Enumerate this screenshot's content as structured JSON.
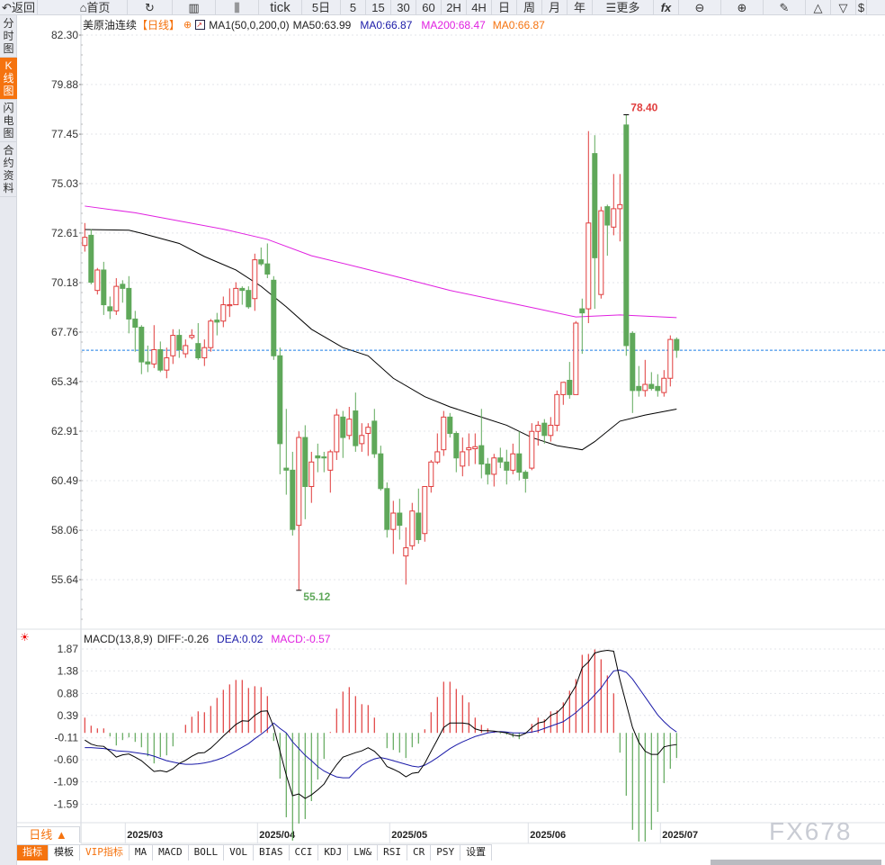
{
  "toolbar": {
    "back": "返回",
    "home": "首页",
    "tick": "tick",
    "periods": [
      "5日",
      "5",
      "15",
      "30",
      "60",
      "2H",
      "4H",
      "日",
      "周",
      "月",
      "年"
    ],
    "more": "更多",
    "fx": "fx"
  },
  "left_tabs": [
    "分时图",
    "K线图",
    "闪电图",
    "合约资料"
  ],
  "active_left_tab": "K线图",
  "legend": {
    "symbol": "美原油连续",
    "period": "【日线】",
    "indicator": "MA1(50,0,200,0)",
    "ma50": "MA50:63.99",
    "ma0a": "MA0:66.87",
    "ma200": "MA200:68.47",
    "ma0b": "MA0:66.87"
  },
  "macd_legend": {
    "name": "MACD(13,8,9)",
    "diff": "DIFF:-0.26",
    "dea": "DEA:0.02",
    "macd": "MACD:-0.57"
  },
  "period_selector": "日线 ▲",
  "bottom_tabs": [
    "指标",
    "模板",
    "VIP指标",
    "MA",
    "MACD",
    "BOLL",
    "VOL",
    "BIAS",
    "CCI",
    "KDJ",
    "LW&",
    "RSI",
    "CR",
    "PSY",
    "设置"
  ],
  "watermark": "FX678",
  "colors": {
    "up": "#e03c3c",
    "down": "#5fa85a",
    "ma50": "#000000",
    "ma200": "#e020e0",
    "last_price_line": "#1e7fe8",
    "dea": "#1a1aa8",
    "accent": "#f5730f"
  },
  "chart_data": [
    {
      "type": "candlestick",
      "title": "美原油连续",
      "ylim": [
        55.64,
        82.3
      ],
      "y_ticks": [
        "82.30",
        "79.88",
        "77.45",
        "75.03",
        "72.61",
        "70.18",
        "67.76",
        "65.34",
        "62.91",
        "60.49",
        "58.06",
        "55.64"
      ],
      "x_ticks": [
        {
          "label": "2025/03",
          "index": 7
        },
        {
          "label": "2025/04",
          "index": 28
        },
        {
          "label": "2025/05",
          "index": 49
        },
        {
          "label": "2025/06",
          "index": 71
        },
        {
          "label": "2025/07",
          "index": 92
        }
      ],
      "annotations": {
        "high": "78.40",
        "low": "55.12",
        "last": 66.87
      },
      "ohlc": [
        [
          72.0,
          73.1,
          71.7,
          72.4
        ],
        [
          72.5,
          72.8,
          70.1,
          70.2
        ],
        [
          69.8,
          70.9,
          69.6,
          70.8
        ],
        [
          70.8,
          71.2,
          68.6,
          69.1
        ],
        [
          69.0,
          69.5,
          68.4,
          68.8
        ],
        [
          68.8,
          70.4,
          68.6,
          70.0
        ],
        [
          70.1,
          70.3,
          69.2,
          69.9
        ],
        [
          69.9,
          70.5,
          67.7,
          68.4
        ],
        [
          68.4,
          68.8,
          66.8,
          68.0
        ],
        [
          68.0,
          68.1,
          65.7,
          66.3
        ],
        [
          66.3,
          67.1,
          65.8,
          66.2
        ],
        [
          66.2,
          68.1,
          66.0,
          66.9
        ],
        [
          66.9,
          67.3,
          65.8,
          65.9
        ],
        [
          65.9,
          67.0,
          65.5,
          66.5
        ],
        [
          66.6,
          67.9,
          66.2,
          67.6
        ],
        [
          67.6,
          67.9,
          66.5,
          66.9
        ],
        [
          66.7,
          67.4,
          66.5,
          67.1
        ],
        [
          67.5,
          67.9,
          67.4,
          67.6
        ],
        [
          67.2,
          68.2,
          66.4,
          66.5
        ],
        [
          66.5,
          67.4,
          66.1,
          67.0
        ],
        [
          67.0,
          68.4,
          66.8,
          68.3
        ],
        [
          68.35,
          68.7,
          67.6,
          68.25
        ],
        [
          68.3,
          69.5,
          68.0,
          69.1
        ],
        [
          69.05,
          69.9,
          68.5,
          69.1
        ],
        [
          69.1,
          70.2,
          69.1,
          69.9
        ],
        [
          69.9,
          70.0,
          69.1,
          69.8
        ],
        [
          69.8,
          70.0,
          68.9,
          69.0
        ],
        [
          69.4,
          71.6,
          68.8,
          71.3
        ],
        [
          71.3,
          71.9,
          71.0,
          71.1
        ],
        [
          71.1,
          72.1,
          70.4,
          70.6
        ],
        [
          70.3,
          70.5,
          66.4,
          66.6
        ],
        [
          66.6,
          67.0,
          60.8,
          62.3
        ],
        [
          61.1,
          64.0,
          59.8,
          61.0
        ],
        [
          61.0,
          61.9,
          57.8,
          58.1
        ],
        [
          58.3,
          62.9,
          55.12,
          62.6
        ],
        [
          62.6,
          63.2,
          58.6,
          60.2
        ],
        [
          60.2,
          61.9,
          59.4,
          61.4
        ],
        [
          61.7,
          62.3,
          60.9,
          61.6
        ],
        [
          61.65,
          61.9,
          60.9,
          61.6
        ],
        [
          61.0,
          62.0,
          59.9,
          61.9
        ],
        [
          61.9,
          64.0,
          61.5,
          63.7
        ],
        [
          63.6,
          63.9,
          61.6,
          62.6
        ],
        [
          62.7,
          64.1,
          62.5,
          63.5
        ],
        [
          63.9,
          64.8,
          61.9,
          62.2
        ],
        [
          62.3,
          63.3,
          61.9,
          62.7
        ],
        [
          62.8,
          63.3,
          61.7,
          63.1
        ],
        [
          63.4,
          64.0,
          61.6,
          61.8
        ],
        [
          61.8,
          62.2,
          60.0,
          60.1
        ],
        [
          60.1,
          60.4,
          57.7,
          58.1
        ],
        [
          58.1,
          59.5,
          56.9,
          58.9
        ],
        [
          58.9,
          59.6,
          57.6,
          58.3
        ],
        [
          56.8,
          58.2,
          55.4,
          57.2
        ],
        [
          57.3,
          59.4,
          57.1,
          59.0
        ],
        [
          58.9,
          60.1,
          57.4,
          57.6
        ],
        [
          57.9,
          60.2,
          57.5,
          60.2
        ],
        [
          60.2,
          61.5,
          59.9,
          61.4
        ],
        [
          61.4,
          62.8,
          61.3,
          61.9
        ],
        [
          62.0,
          63.9,
          61.7,
          63.6
        ],
        [
          63.6,
          63.8,
          62.6,
          62.8
        ],
        [
          62.8,
          62.9,
          60.9,
          61.6
        ],
        [
          61.2,
          62.6,
          60.7,
          61.9
        ],
        [
          62.0,
          62.8,
          61.2,
          62.1
        ],
        [
          62.05,
          62.8,
          61.3,
          62.15
        ],
        [
          62.2,
          64.0,
          60.6,
          61.3
        ],
        [
          61.3,
          61.6,
          60.3,
          60.8
        ],
        [
          60.8,
          61.8,
          60.2,
          61.6
        ],
        [
          61.6,
          62.1,
          61.1,
          61.4
        ],
        [
          61.4,
          62.0,
          60.3,
          61.0
        ],
        [
          61.0,
          62.3,
          60.8,
          61.8
        ],
        [
          61.8,
          62.9,
          60.5,
          60.9
        ],
        [
          60.9,
          61.0,
          59.9,
          60.6
        ],
        [
          61.1,
          63.3,
          61.0,
          62.9
        ],
        [
          62.9,
          63.4,
          62.2,
          63.2
        ],
        [
          63.3,
          63.5,
          62.3,
          62.7
        ],
        [
          62.7,
          63.6,
          62.4,
          63.2
        ],
        [
          63.2,
          64.9,
          62.9,
          64.7
        ],
        [
          64.7,
          65.3,
          64.2,
          65.3
        ],
        [
          65.4,
          66.3,
          64.5,
          64.7
        ],
        [
          64.7,
          68.3,
          64.7,
          68.2
        ],
        [
          68.9,
          69.4,
          66.7,
          68.7
        ],
        [
          68.9,
          77.6,
          68.2,
          73.1
        ],
        [
          76.5,
          77.4,
          68.9,
          71.4
        ],
        [
          69.6,
          73.9,
          69.4,
          73.7
        ],
        [
          73.9,
          74.0,
          71.5,
          73.0
        ],
        [
          72.9,
          75.5,
          72.5,
          73.8
        ],
        [
          73.8,
          75.5,
          72.2,
          74.0
        ],
        [
          77.9,
          78.4,
          66.6,
          67.1
        ],
        [
          67.7,
          67.8,
          63.8,
          64.9
        ],
        [
          65.1,
          66.1,
          64.6,
          64.9
        ],
        [
          64.9,
          66.4,
          64.6,
          65.2
        ],
        [
          65.2,
          65.8,
          64.9,
          65.0
        ],
        [
          65.1,
          65.7,
          64.6,
          64.9
        ],
        [
          64.8,
          65.9,
          64.6,
          65.5
        ],
        [
          65.5,
          67.6,
          65.1,
          67.4
        ],
        [
          67.4,
          67.5,
          66.5,
          66.87
        ]
      ],
      "ma50": [
        [
          0,
          72.78
        ],
        [
          7,
          72.75
        ],
        [
          9,
          72.6
        ],
        [
          15,
          72.1
        ],
        [
          19,
          71.46
        ],
        [
          24,
          70.8
        ],
        [
          28,
          70.0
        ],
        [
          32,
          69.0
        ],
        [
          36,
          67.9
        ],
        [
          41,
          67.0
        ],
        [
          45,
          66.6
        ],
        [
          49,
          65.5
        ],
        [
          54,
          64.6
        ],
        [
          58,
          64.1
        ],
        [
          62,
          63.7
        ],
        [
          67,
          63.2
        ],
        [
          71,
          62.6
        ],
        [
          75,
          62.2
        ],
        [
          79,
          62.0
        ],
        [
          81,
          62.4
        ],
        [
          85,
          63.4
        ],
        [
          89,
          63.7
        ],
        [
          94,
          63.99
        ]
      ],
      "ma200": [
        [
          0,
          73.93
        ],
        [
          8,
          73.6
        ],
        [
          15,
          73.2
        ],
        [
          22,
          72.8
        ],
        [
          29,
          72.3
        ],
        [
          36,
          71.5
        ],
        [
          44,
          70.9
        ],
        [
          51,
          70.36
        ],
        [
          58,
          69.8
        ],
        [
          65,
          69.35
        ],
        [
          72,
          68.9
        ],
        [
          78,
          68.5
        ],
        [
          85,
          68.6
        ],
        [
          94,
          68.47
        ]
      ]
    },
    {
      "type": "macd",
      "title": "MACD(13,8,9)",
      "ylim": [
        -1.59,
        1.87
      ],
      "y_ticks": [
        "1.87",
        "1.38",
        "0.88",
        "0.39",
        "-0.11",
        "-0.60",
        "-1.09",
        "-1.59"
      ],
      "diff": [
        -0.16,
        -0.25,
        -0.29,
        -0.3,
        -0.41,
        -0.54,
        -0.49,
        -0.47,
        -0.54,
        -0.62,
        -0.74,
        -0.86,
        -0.84,
        -0.87,
        -0.8,
        -0.68,
        -0.61,
        -0.52,
        -0.45,
        -0.44,
        -0.34,
        -0.21,
        -0.07,
        0.06,
        0.19,
        0.27,
        0.26,
        0.39,
        0.48,
        0.49,
        0.13,
        -0.41,
        -0.94,
        -1.4,
        -1.36,
        -1.46,
        -1.38,
        -1.27,
        -1.14,
        -0.91,
        -0.71,
        -0.54,
        -0.49,
        -0.44,
        -0.4,
        -0.33,
        -0.41,
        -0.55,
        -0.75,
        -0.81,
        -0.88,
        -0.98,
        -0.9,
        -0.88,
        -0.68,
        -0.41,
        -0.15,
        0.12,
        0.22,
        0.22,
        0.22,
        0.2,
        0.09,
        0.05,
        0.05,
        0.04,
        0.02,
        0.0,
        -0.05,
        -0.07,
        -0.01,
        0.12,
        0.22,
        0.25,
        0.39,
        0.45,
        0.59,
        0.82,
        1.05,
        1.45,
        1.58,
        1.78,
        1.82,
        1.84,
        1.82,
        1.18,
        0.65,
        0.12,
        -0.21,
        -0.41,
        -0.48,
        -0.48,
        -0.31,
        -0.28,
        -0.26
      ],
      "dea": [
        -0.33,
        -0.33,
        -0.34,
        -0.35,
        -0.37,
        -0.4,
        -0.41,
        -0.42,
        -0.44,
        -0.46,
        -0.48,
        -0.52,
        -0.57,
        -0.62,
        -0.65,
        -0.68,
        -0.7,
        -0.7,
        -0.69,
        -0.67,
        -0.64,
        -0.6,
        -0.55,
        -0.48,
        -0.4,
        -0.32,
        -0.24,
        -0.13,
        -0.03,
        0.08,
        0.22,
        0.1,
        0.0,
        -0.2,
        -0.35,
        -0.5,
        -0.62,
        -0.75,
        -0.85,
        -0.92,
        -0.98,
        -1.0,
        -1.0,
        -0.85,
        -0.72,
        -0.64,
        -0.58,
        -0.55,
        -0.58,
        -0.62,
        -0.66,
        -0.7,
        -0.74,
        -0.76,
        -0.72,
        -0.64,
        -0.55,
        -0.45,
        -0.35,
        -0.27,
        -0.2,
        -0.14,
        -0.08,
        -0.04,
        0.0,
        0.02,
        0.03,
        0.02,
        0.0,
        0.0,
        0.0,
        0.02,
        0.05,
        0.1,
        0.15,
        0.2,
        0.25,
        0.35,
        0.45,
        0.58,
        0.7,
        0.85,
        1.0,
        1.2,
        1.38,
        1.4,
        1.35,
        1.2,
        1.0,
        0.8,
        0.6,
        0.4,
        0.25,
        0.12,
        0.02
      ]
    }
  ]
}
